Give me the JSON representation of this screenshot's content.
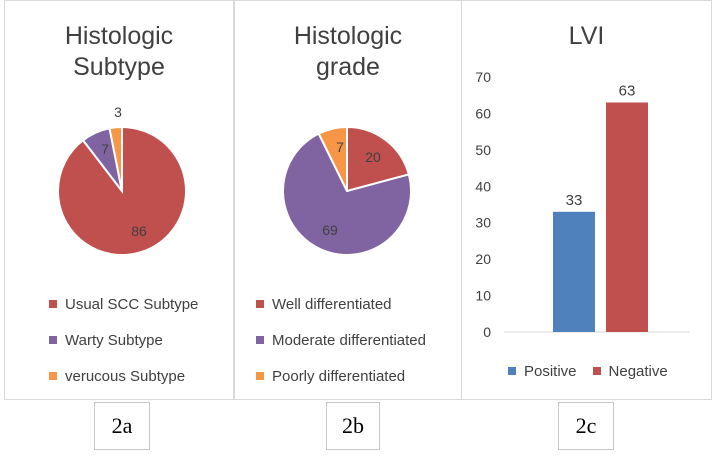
{
  "colors": {
    "red": "#c0504d",
    "purple": "#8064a2",
    "orange": "#f79646",
    "blue": "#4f81bd"
  },
  "chart_data": [
    {
      "type": "pie",
      "title": "Histologic Subtype",
      "title_lines": [
        "Histologic",
        "Subtype"
      ],
      "labels": [
        "Usual SCC Subtype",
        "Warty Subtype",
        "verucous Subtype"
      ],
      "values": [
        86,
        7,
        3
      ],
      "colors": [
        "#c0504d",
        "#8064a2",
        "#f79646"
      ],
      "legend": "bottom",
      "caption": "2a"
    },
    {
      "type": "pie",
      "title": "Histologic grade",
      "title_lines": [
        "Histologic",
        "grade"
      ],
      "labels": [
        "Well differentiated",
        "Moderate differentiated",
        "Poorly differentiated"
      ],
      "values": [
        20,
        69,
        7
      ],
      "colors": [
        "#c0504d",
        "#8064a2",
        "#f79646"
      ],
      "legend": "bottom",
      "caption": "2b"
    },
    {
      "type": "bar",
      "title": "LVI",
      "categories": [
        "Positive",
        "Negative"
      ],
      "values": [
        33,
        63
      ],
      "colors": [
        "#4f81bd",
        "#c0504d"
      ],
      "ylim": [
        0,
        70
      ],
      "yticks": [
        0,
        10,
        20,
        30,
        40,
        50,
        60,
        70
      ],
      "grid": false,
      "legend": "bottom",
      "caption": "2c"
    }
  ]
}
